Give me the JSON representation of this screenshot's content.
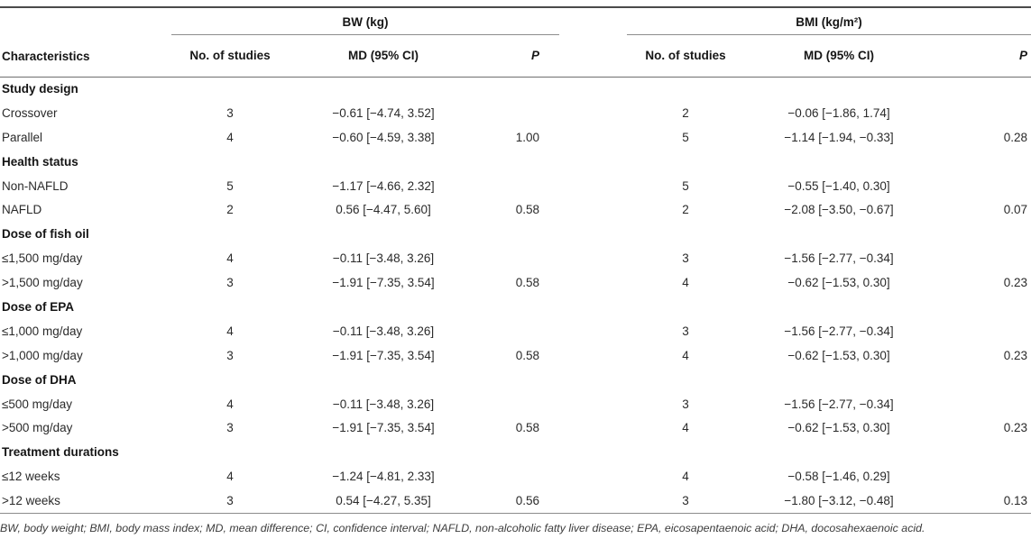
{
  "table": {
    "characteristics_header": "Characteristics",
    "group_bw": "BW (kg)",
    "group_bmi": "BMI (kg/m²)",
    "sub": {
      "n": "No. of studies",
      "md": "MD (95% CI)",
      "p": "P"
    },
    "sections": [
      {
        "title": "Study design",
        "rows": [
          {
            "label": "Crossover",
            "bw_n": "3",
            "bw_md": "−0.61 [−4.74, 3.52]",
            "bw_p": "",
            "bmi_n": "2",
            "bmi_md": "−0.06 [−1.86, 1.74]",
            "bmi_p": ""
          },
          {
            "label": "Parallel",
            "bw_n": "4",
            "bw_md": "−0.60 [−4.59, 3.38]",
            "bw_p": "1.00",
            "bmi_n": "5",
            "bmi_md": "−1.14 [−1.94, −0.33]",
            "bmi_p": "0.28"
          }
        ]
      },
      {
        "title": "Health status",
        "rows": [
          {
            "label": "Non-NAFLD",
            "bw_n": "5",
            "bw_md": "−1.17 [−4.66, 2.32]",
            "bw_p": "",
            "bmi_n": "5",
            "bmi_md": "−0.55 [−1.40, 0.30]",
            "bmi_p": ""
          },
          {
            "label": "NAFLD",
            "bw_n": "2",
            "bw_md": "0.56 [−4.47, 5.60]",
            "bw_p": "0.58",
            "bmi_n": "2",
            "bmi_md": "−2.08 [−3.50, −0.67]",
            "bmi_p": "0.07"
          }
        ]
      },
      {
        "title": "Dose of fish oil",
        "rows": [
          {
            "label": "≤1,500 mg/day",
            "bw_n": "4",
            "bw_md": "−0.11 [−3.48, 3.26]",
            "bw_p": "",
            "bmi_n": "3",
            "bmi_md": "−1.56 [−2.77, −0.34]",
            "bmi_p": ""
          },
          {
            "label": ">1,500 mg/day",
            "bw_n": "3",
            "bw_md": "−1.91 [−7.35, 3.54]",
            "bw_p": "0.58",
            "bmi_n": "4",
            "bmi_md": "−0.62 [−1.53, 0.30]",
            "bmi_p": "0.23"
          }
        ]
      },
      {
        "title": "Dose of EPA",
        "rows": [
          {
            "label": "≤1,000 mg/day",
            "bw_n": "4",
            "bw_md": "−0.11 [−3.48, 3.26]",
            "bw_p": "",
            "bmi_n": "3",
            "bmi_md": "−1.56 [−2.77, −0.34]",
            "bmi_p": ""
          },
          {
            "label": ">1,000 mg/day",
            "bw_n": "3",
            "bw_md": "−1.91 [−7.35, 3.54]",
            "bw_p": "0.58",
            "bmi_n": "4",
            "bmi_md": "−0.62 [−1.53, 0.30]",
            "bmi_p": "0.23"
          }
        ]
      },
      {
        "title": "Dose of DHA",
        "rows": [
          {
            "label": "≤500 mg/day",
            "bw_n": "4",
            "bw_md": "−0.11 [−3.48, 3.26]",
            "bw_p": "",
            "bmi_n": "3",
            "bmi_md": "−1.56 [−2.77, −0.34]",
            "bmi_p": ""
          },
          {
            "label": ">500 mg/day",
            "bw_n": "3",
            "bw_md": "−1.91 [−7.35, 3.54]",
            "bw_p": "0.58",
            "bmi_n": "4",
            "bmi_md": "−0.62 [−1.53, 0.30]",
            "bmi_p": "0.23"
          }
        ]
      },
      {
        "title": "Treatment durations",
        "rows": [
          {
            "label": "≤12 weeks",
            "bw_n": "4",
            "bw_md": "−1.24 [−4.81, 2.33]",
            "bw_p": "",
            "bmi_n": "4",
            "bmi_md": "−0.58 [−1.46, 0.29]",
            "bmi_p": ""
          },
          {
            "label": ">12 weeks",
            "bw_n": "3",
            "bw_md": "0.54 [−4.27, 5.35]",
            "bw_p": "0.56",
            "bmi_n": "3",
            "bmi_md": "−1.80 [−3.12, −0.48]",
            "bmi_p": "0.13"
          }
        ]
      }
    ],
    "footnote": "BW, body weight; BMI, body mass index; MD, mean difference; CI, confidence interval; NAFLD, non-alcoholic fatty liver disease; EPA, eicosapentaenoic acid; DHA, docosahexaenoic acid."
  }
}
